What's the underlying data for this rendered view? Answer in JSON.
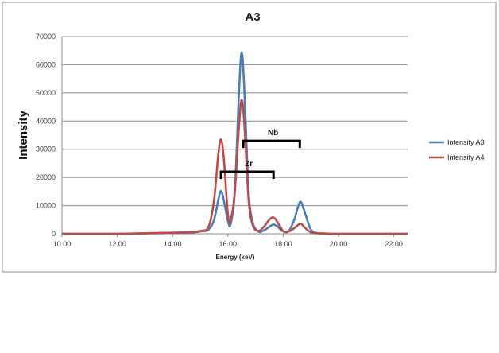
{
  "chart_data": {
    "type": "line",
    "title": "A3",
    "xlabel": "Energy (keV)",
    "ylabel": "Intensity",
    "xlim": [
      10,
      22.5
    ],
    "ylim": [
      0,
      70000
    ],
    "xticks": [
      "10.00",
      "12.00",
      "14.00",
      "16.00",
      "18.00",
      "20.00",
      "22.00"
    ],
    "yticks": [
      "0",
      "10000",
      "20000",
      "30000",
      "40000",
      "50000",
      "60000",
      "70000"
    ],
    "grid": "horizontal",
    "legend_position": "right",
    "series": [
      {
        "name": "Intensity A3",
        "color": "#4a7ebb",
        "x": [
          10,
          12,
          13.5,
          14.5,
          15.0,
          15.3,
          15.5,
          15.65,
          15.75,
          15.85,
          16.0,
          16.1,
          16.25,
          16.4,
          16.5,
          16.6,
          16.75,
          16.9,
          17.1,
          17.3,
          17.5,
          17.65,
          17.8,
          18.0,
          18.2,
          18.4,
          18.55,
          18.65,
          18.8,
          19.0,
          19.2,
          19.5,
          20,
          22.5
        ],
        "y": [
          0,
          0,
          200,
          400,
          800,
          1500,
          5000,
          12000,
          15200,
          12000,
          4500,
          3500,
          15000,
          50000,
          64300,
          50000,
          15000,
          4000,
          800,
          1200,
          2500,
          3300,
          2500,
          800,
          1000,
          5000,
          10000,
          11200,
          7000,
          1500,
          300,
          100,
          0,
          0
        ]
      },
      {
        "name": "Intensity A4",
        "color": "#be4b48",
        "x": [
          10,
          12,
          13.5,
          14.5,
          15.0,
          15.3,
          15.5,
          15.65,
          15.75,
          15.85,
          16.0,
          16.1,
          16.25,
          16.4,
          16.5,
          16.6,
          16.75,
          16.9,
          17.1,
          17.3,
          17.5,
          17.65,
          17.8,
          18.0,
          18.2,
          18.4,
          18.55,
          18.65,
          18.8,
          19.0,
          19.2,
          19.5,
          20,
          22.5
        ],
        "y": [
          0,
          0,
          300,
          500,
          1000,
          2500,
          12000,
          28000,
          33500,
          27000,
          7000,
          5000,
          15000,
          38000,
          47500,
          38000,
          12000,
          3000,
          1000,
          2500,
          5000,
          5800,
          4000,
          1000,
          800,
          2000,
          3200,
          3500,
          2000,
          500,
          200,
          100,
          0,
          0
        ]
      }
    ],
    "annotations": [
      {
        "label": "Zr",
        "x_start": 15.75,
        "x_end": 17.65,
        "y": 22000
      },
      {
        "label": "Nb",
        "x_start": 16.55,
        "x_end": 18.6,
        "y": 33000
      }
    ]
  }
}
